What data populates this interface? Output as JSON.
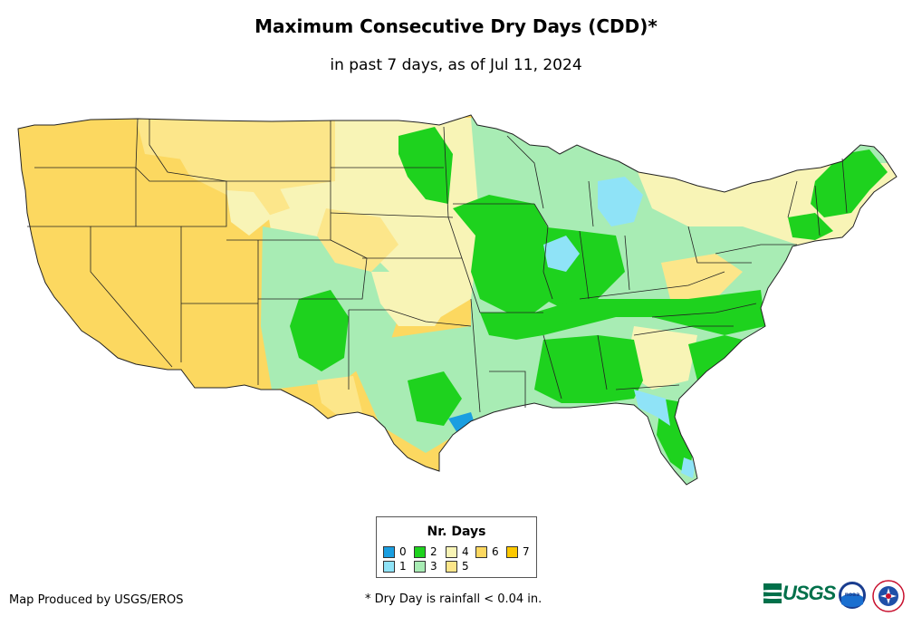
{
  "header": {
    "title": "Maximum Consecutive Dry Days (CDD)*",
    "subtitle": "in past 7 days, as of Jul 11, 2024"
  },
  "legend": {
    "title": "Nr. Days",
    "items": [
      {
        "label": "0",
        "color": "#1a9ee0"
      },
      {
        "label": "1",
        "color": "#8fe3f7"
      },
      {
        "label": "2",
        "color": "#1ed21e"
      },
      {
        "label": "3",
        "color": "#a8ecb4"
      },
      {
        "label": "4",
        "color": "#f8f4b6"
      },
      {
        "label": "5",
        "color": "#fce68a"
      },
      {
        "label": "6",
        "color": "#fcd860"
      },
      {
        "label": "7",
        "color": "#fcc800"
      }
    ]
  },
  "footer": {
    "credit": "Map Produced by USGS/EROS",
    "note": "* Dry Day is rainfall < 0.04 in."
  },
  "logos": {
    "usgs": "USGS",
    "noaa": "noaa",
    "nws": "NATIONAL WEATHER SERVICE"
  }
}
